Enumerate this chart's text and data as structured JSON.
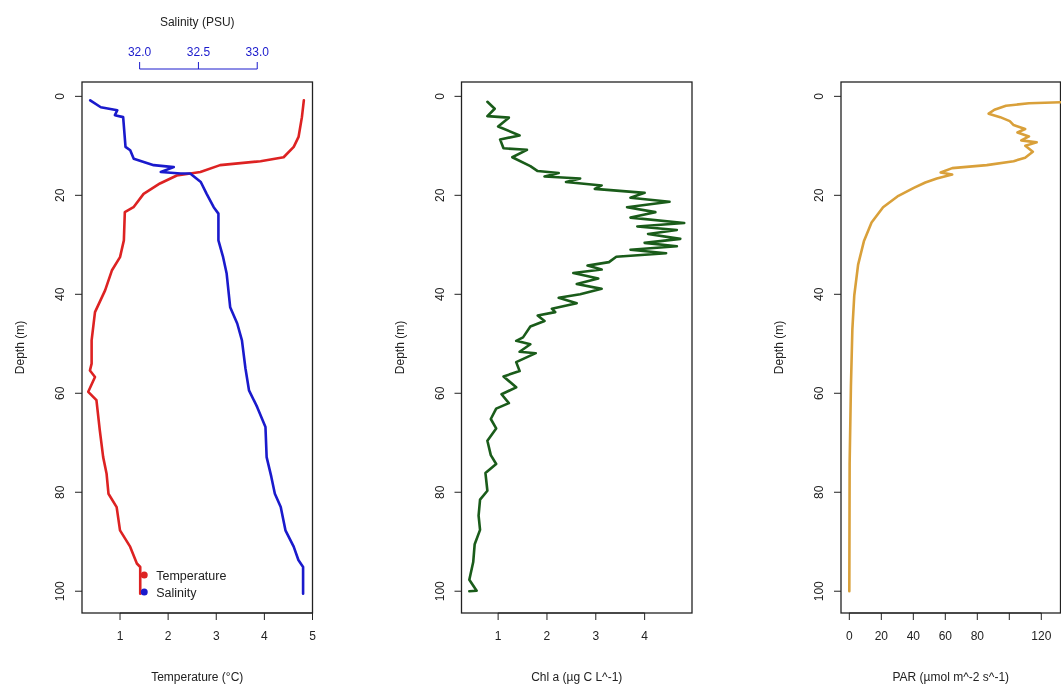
{
  "chart_data": [
    {
      "type": "line",
      "xlabel": "Temperature (°C)",
      "ylabel": "Depth (m)",
      "x2label": "Salinity (PSU)",
      "xlim": [
        0.21,
        5.0
      ],
      "xticks": [
        1,
        2,
        3,
        4,
        5
      ],
      "x2lim": [
        31.51,
        33.47
      ],
      "x2ticks": [
        {
          "value": 32,
          "label": "32.0"
        },
        {
          "value": 32.5,
          "label": "32.5"
        },
        {
          "value": 33,
          "label": "33.0"
        }
      ],
      "ylim": [
        104.4,
        -2.9
      ],
      "yticks": [
        0,
        20,
        40,
        60,
        80,
        100
      ],
      "legend": "bottom",
      "series": [
        {
          "name": "Temperature",
          "color": "#dd2222",
          "x": [
            4.82,
            4.78,
            4.71,
            4.61,
            4.4,
            3.92,
            3.08,
            2.67,
            2.18,
            1.83,
            1.49,
            1.28,
            1.1,
            1.08,
            1.0,
            0.83,
            0.69,
            0.48,
            0.41,
            0.41,
            0.375,
            0.48,
            0.34,
            0.51,
            0.58,
            0.65,
            0.72,
            0.76,
            0.93,
            1.0,
            1.21,
            1.35,
            1.42,
            1.42
          ],
          "values": [
            0.8,
            4.2,
            8.2,
            10.2,
            12.3,
            13.1,
            13.9,
            15.3,
            16.0,
            17.6,
            19.7,
            22.4,
            23.4,
            29.1,
            32.5,
            35.2,
            39.2,
            43.6,
            49.3,
            54.0,
            55.4,
            56.7,
            59.7,
            61.4,
            67.5,
            72.9,
            76.2,
            80.3,
            83.0,
            87.7,
            91.0,
            94.4,
            95.1,
            100.5
          ]
        },
        {
          "name": "Salinity",
          "color": "#1a1acc",
          "axis": "x2",
          "x": [
            31.58,
            31.67,
            31.81,
            31.79,
            31.86,
            31.88,
            31.92,
            31.95,
            32.12,
            32.29,
            32.18,
            32.35,
            32.43,
            32.52,
            32.57,
            32.63,
            32.67,
            32.67,
            32.71,
            32.74,
            32.77,
            32.83,
            32.87,
            32.9,
            32.93,
            33.0,
            33.07,
            33.08,
            33.12,
            33.15,
            33.2,
            33.24,
            33.31,
            33.35,
            33.39,
            33.39
          ],
          "values": [
            0.8,
            2.2,
            2.8,
            3.8,
            4.2,
            10.2,
            10.9,
            12.6,
            13.9,
            14.3,
            15.3,
            15.6,
            15.6,
            17.3,
            19.7,
            22.4,
            23.7,
            29.1,
            32.5,
            35.8,
            42.6,
            45.9,
            49.3,
            55.0,
            59.4,
            62.8,
            66.8,
            72.9,
            76.9,
            80.3,
            83.0,
            87.7,
            91.0,
            93.7,
            95.1,
            100.5
          ]
        }
      ]
    },
    {
      "type": "line",
      "xlabel": "Chl a (µg C L^-1)",
      "ylabel": "Depth (m)",
      "xlim": [
        0.25,
        4.97
      ],
      "xticks": [
        1,
        2,
        3,
        4
      ],
      "ylim": [
        104.4,
        -2.9
      ],
      "yticks": [
        0,
        20,
        40,
        60,
        80,
        100
      ],
      "series": [
        {
          "color": "#1a5c1a",
          "x": [
            0.78,
            0.93,
            0.78,
            1.22,
            1.0,
            1.44,
            1.04,
            1.11,
            1.59,
            1.29,
            1.66,
            1.81,
            2.24,
            1.95,
            2.68,
            2.39,
            3.12,
            2.98,
            4.0,
            3.71,
            4.51,
            3.64,
            4.22,
            3.71,
            4.81,
            3.85,
            4.66,
            4.07,
            4.73,
            4.0,
            4.66,
            3.71,
            4.44,
            3.42,
            3.27,
            2.83,
            3.12,
            2.54,
            3.05,
            2.61,
            3.12,
            2.68,
            2.24,
            2.61,
            2.1,
            2.17,
            1.81,
            1.95,
            1.66,
            1.51,
            1.37,
            1.66,
            1.44,
            1.77,
            1.37,
            1.44,
            1.11,
            1.37,
            1.07,
            1.22,
            0.96,
            0.85,
            0.96,
            0.78,
            0.85,
            0.96,
            0.74,
            0.78,
            0.63,
            0.6,
            0.63,
            0.52,
            0.49,
            0.41,
            0.56,
            0.41
          ],
          "values": [
            1.1,
            2.5,
            4.0,
            4.3,
            6.1,
            7.9,
            8.7,
            10.5,
            10.8,
            12.3,
            14.1,
            15.1,
            15.5,
            16.2,
            16.6,
            17.3,
            18.0,
            18.7,
            19.5,
            20.5,
            21.3,
            22.4,
            23.4,
            24.5,
            25.6,
            26.3,
            27.0,
            27.8,
            28.8,
            29.6,
            30.3,
            31.0,
            31.7,
            32.4,
            33.5,
            34.2,
            35.0,
            35.7,
            36.8,
            37.9,
            38.9,
            40.0,
            40.7,
            41.8,
            42.9,
            43.6,
            44.3,
            45.4,
            46.5,
            48.7,
            49.4,
            50.1,
            51.6,
            51.9,
            53.7,
            55.5,
            56.6,
            58.8,
            60.2,
            62.0,
            63.1,
            65.2,
            67.1,
            69.6,
            72.5,
            74.3,
            76.1,
            79.7,
            81.5,
            84.7,
            87.6,
            90.5,
            94.1,
            97.7,
            99.9,
            100.0
          ]
        }
      ]
    },
    {
      "type": "line",
      "xlabel": "PAR (µmol m^-2 s^-1)",
      "ylabel": "Depth (m)",
      "xlim": [
        -5.2,
        132
      ],
      "xticks": [
        0,
        20,
        40,
        60,
        80,
        {
          "value": 100,
          "label": null
        },
        120
      ],
      "ylim": [
        104.4,
        -2.9
      ],
      "yticks": [
        0,
        20,
        40,
        60,
        80,
        100
      ],
      "series": [
        {
          "color": "#d9a03a",
          "x": [
            132,
            112.3,
            97.9,
            90.7,
            87.1,
            94.3,
            100.3,
            102.7,
            109.9,
            105.1,
            112.3,
            107.5,
            117.1,
            110.0,
            114.7,
            109.9,
            102.7,
            85.9,
            64.3,
            57.1,
            64.3,
            54.7,
            47.5,
            40.3,
            30.7,
            21.1,
            13.9,
            9.1,
            5.5,
            3.1,
            1.9,
            1.0,
            0.2,
            0
          ],
          "values": [
            1.2,
            1.4,
            1.9,
            2.7,
            3.5,
            4.2,
            5.0,
            5.8,
            6.6,
            7.3,
            8.1,
            8.9,
            9.3,
            10.0,
            11.2,
            12.4,
            13.1,
            13.9,
            14.5,
            15.4,
            15.8,
            16.6,
            17.4,
            18.5,
            20.1,
            22.4,
            25.5,
            29.3,
            34.0,
            40.2,
            47.1,
            58.7,
            74.1,
            100
          ]
        }
      ]
    }
  ]
}
